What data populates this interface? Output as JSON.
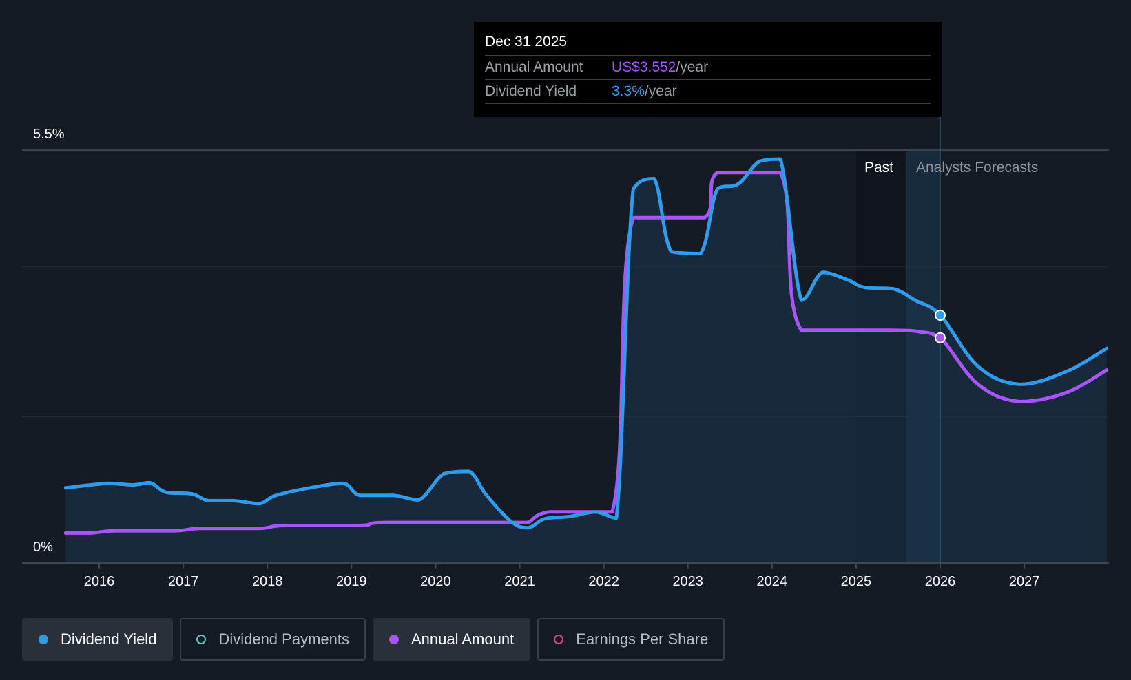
{
  "tooltip": {
    "date": "Dec 31 2025",
    "rows": [
      {
        "label": "Annual Amount",
        "value": "US$3.552",
        "suffix": "/year",
        "color": "#a855f7"
      },
      {
        "label": "Dividend Yield",
        "value": "3.3%",
        "suffix": "/year",
        "color": "#2f9be9"
      }
    ]
  },
  "legend": [
    {
      "label": "Dividend Yield",
      "color": "#2f9be9",
      "active": true,
      "icon": "filled-dot-icon"
    },
    {
      "label": "Dividend Payments",
      "color": "#4fd1c5",
      "active": false,
      "icon": "hollow-dot-icon"
    },
    {
      "label": "Annual Amount",
      "color": "#a855f7",
      "active": true,
      "icon": "filled-dot-icon"
    },
    {
      "label": "Earnings Per Share",
      "color": "#e0457b",
      "active": false,
      "icon": "hollow-dot-icon"
    }
  ],
  "chart_data": {
    "type": "line",
    "y_axis": {
      "min_label": "0%",
      "max_label": "5.5%",
      "range": [
        0,
        5.5
      ]
    },
    "x_axis": {
      "ticks": [
        "2016",
        "2017",
        "2018",
        "2019",
        "2020",
        "2021",
        "2022",
        "2023",
        "2024",
        "2025",
        "2026",
        "2027"
      ],
      "range": [
        2015.6,
        2027.98
      ]
    },
    "zones": {
      "past_label": "Past",
      "forecast_label": "Analysts Forecasts",
      "past_start": 2025.0,
      "now": 2026.0
    },
    "colors": {
      "yield": "#2f9be9",
      "amount": "#a855f7",
      "area": "#1b3550",
      "grid": "#2a323c",
      "axis": "#3e4650"
    },
    "series": [
      {
        "name": "Dividend Yield",
        "key": "yield",
        "points": [
          [
            2015.6,
            1.0
          ],
          [
            2016.1,
            1.06
          ],
          [
            2016.4,
            1.04
          ],
          [
            2016.6,
            1.07
          ],
          [
            2016.8,
            0.94
          ],
          [
            2017.1,
            0.92
          ],
          [
            2017.3,
            0.83
          ],
          [
            2017.6,
            0.83
          ],
          [
            2017.9,
            0.79
          ],
          [
            2018.1,
            0.9
          ],
          [
            2018.5,
            1.0
          ],
          [
            2018.9,
            1.06
          ],
          [
            2019.1,
            0.9
          ],
          [
            2019.5,
            0.9
          ],
          [
            2019.8,
            0.84
          ],
          [
            2020.1,
            1.19
          ],
          [
            2020.4,
            1.22
          ],
          [
            2020.6,
            0.91
          ],
          [
            2020.9,
            0.55
          ],
          [
            2021.1,
            0.47
          ],
          [
            2021.3,
            0.59
          ],
          [
            2021.6,
            0.62
          ],
          [
            2021.9,
            0.68
          ],
          [
            2022.15,
            0.6
          ],
          [
            2022.35,
            4.98
          ],
          [
            2022.6,
            5.12
          ],
          [
            2022.8,
            4.15
          ],
          [
            2023.15,
            4.12
          ],
          [
            2023.35,
            4.98
          ],
          [
            2023.6,
            5.05
          ],
          [
            2023.85,
            5.35
          ],
          [
            2024.1,
            5.38
          ],
          [
            2024.35,
            3.5
          ],
          [
            2024.6,
            3.87
          ],
          [
            2024.9,
            3.77
          ],
          [
            2025.1,
            3.67
          ],
          [
            2025.45,
            3.65
          ],
          [
            2025.7,
            3.5
          ],
          [
            2026.0,
            3.3
          ],
          [
            2026.45,
            2.62
          ],
          [
            2026.95,
            2.38
          ],
          [
            2027.5,
            2.55
          ],
          [
            2027.98,
            2.86
          ]
        ]
      },
      {
        "name": "Annual Amount",
        "key": "amount",
        "points": [
          [
            2015.6,
            0.4
          ],
          [
            2015.9,
            0.4
          ],
          [
            2016.2,
            0.43
          ],
          [
            2016.9,
            0.43
          ],
          [
            2017.2,
            0.46
          ],
          [
            2017.9,
            0.46
          ],
          [
            2018.2,
            0.5
          ],
          [
            2019.1,
            0.5
          ],
          [
            2019.4,
            0.54
          ],
          [
            2021.0,
            0.54
          ],
          [
            2021.1,
            0.54
          ],
          [
            2021.35,
            0.68
          ],
          [
            2022.1,
            0.68
          ],
          [
            2022.35,
            4.6
          ],
          [
            2023.2,
            4.6
          ],
          [
            2023.35,
            5.2
          ],
          [
            2024.1,
            5.2
          ],
          [
            2024.35,
            3.1
          ],
          [
            2025.4,
            3.1
          ],
          [
            2025.75,
            3.08
          ],
          [
            2026.0,
            3.0
          ],
          [
            2026.45,
            2.38
          ],
          [
            2026.95,
            2.15
          ],
          [
            2027.5,
            2.27
          ],
          [
            2027.98,
            2.57
          ]
        ]
      }
    ]
  }
}
